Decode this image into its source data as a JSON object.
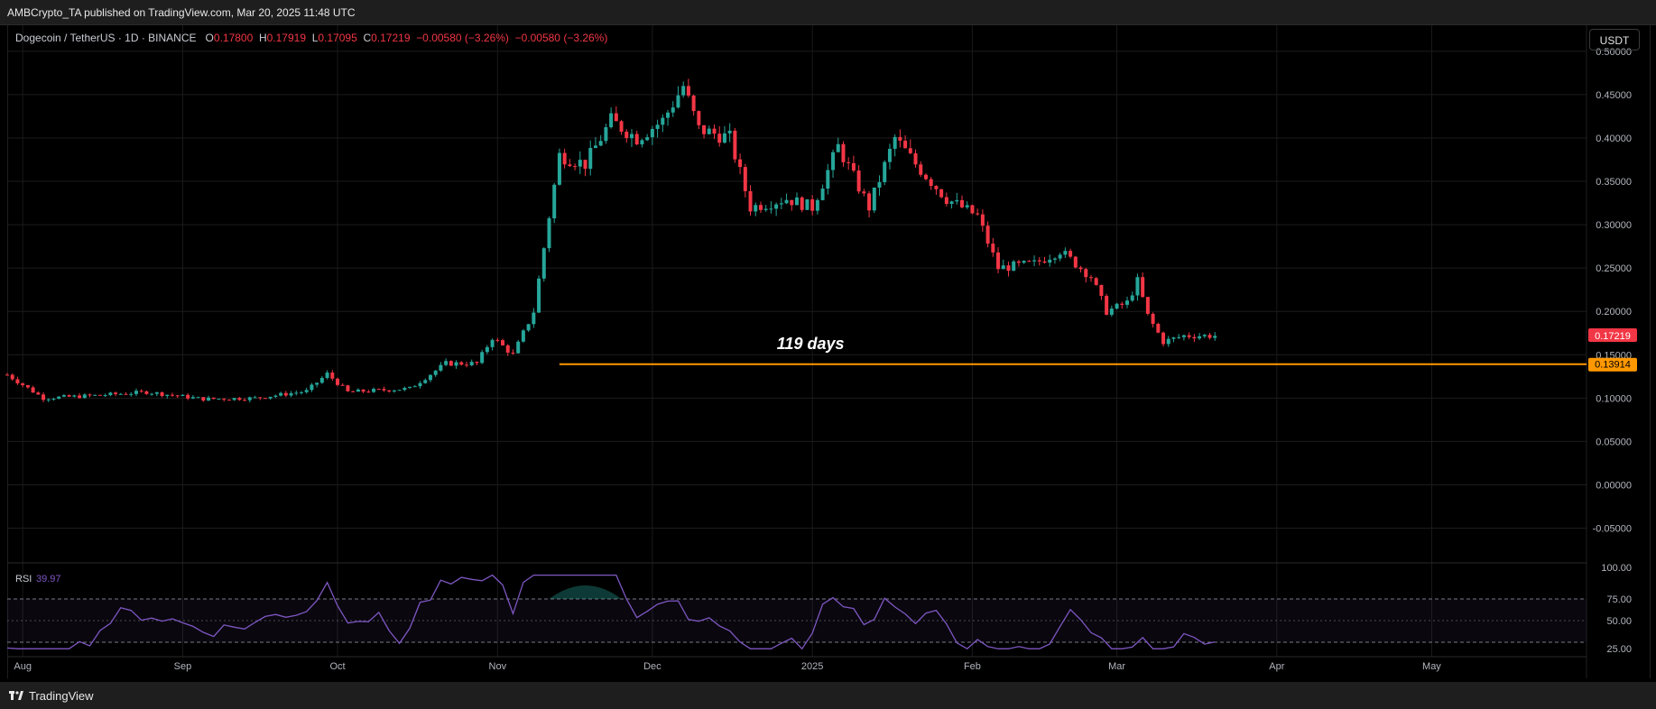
{
  "header": {
    "publisher": "AMBCrypto_TA published on TradingView.com, Mar 20, 2025 11:48 UTC"
  },
  "legend": {
    "symbol": "Dogecoin / TetherUS · 1D · BINANCE",
    "o_label": "O",
    "o": "0.17800",
    "h_label": "H",
    "h": "0.17919",
    "l_label": "L",
    "l": "0.17095",
    "c_label": "C",
    "c": "0.17219",
    "change": "−0.00580 (−3.26%)",
    "change2": "−0.00580 (−3.26%)"
  },
  "currency_button": "USDT",
  "annotation": "119 days",
  "price_tags": {
    "last": "0.17219",
    "support": "0.13914"
  },
  "colors": {
    "up": "#26a69a",
    "down": "#f23645",
    "support": "#ff9800",
    "rsi": "#7e57c2",
    "bg": "#000000"
  },
  "rsi": {
    "label": "RSI",
    "value": "39.97",
    "ticks": [
      "100.00",
      "75.00",
      "50.00",
      "25.00"
    ]
  },
  "footer": {
    "brand": "TradingView",
    "icon": "tradingview-logo-icon"
  },
  "chart_data": {
    "type": "candlestick",
    "title": "Dogecoin / TetherUS · 1D · BINANCE",
    "y_ticks": [
      "0.50000",
      "0.45000",
      "0.40000",
      "0.35000",
      "0.30000",
      "0.25000",
      "0.20000",
      "0.15000",
      "0.10000",
      "0.05000",
      "0.00000",
      "-0.05000"
    ],
    "ylim": [
      -0.09,
      0.53
    ],
    "x_ticks": [
      "Aug",
      "Sep",
      "Oct",
      "Nov",
      "Dec",
      "2025",
      "Feb",
      "Mar",
      "Apr",
      "May"
    ],
    "x_range": [
      "2024-07-29",
      "2025-05-31"
    ],
    "last_price": 0.17219,
    "support_level": 0.13914,
    "support_start": "2024-11-13",
    "annotation_date": "2025-01-01",
    "annotation_price": 0.163,
    "grid": true,
    "path": [
      [
        "2024-07-29",
        0.127
      ],
      [
        "2024-08-05",
        0.1
      ],
      [
        "2024-08-15",
        0.103
      ],
      [
        "2024-08-25",
        0.107
      ],
      [
        "2024-09-05",
        0.099
      ],
      [
        "2024-09-15",
        0.1
      ],
      [
        "2024-09-25",
        0.108
      ],
      [
        "2024-09-29",
        0.128
      ],
      [
        "2024-10-03",
        0.107
      ],
      [
        "2024-10-15",
        0.111
      ],
      [
        "2024-10-22",
        0.14
      ],
      [
        "2024-10-28",
        0.14
      ],
      [
        "2024-10-31",
        0.17
      ],
      [
        "2024-11-04",
        0.15
      ],
      [
        "2024-11-08",
        0.2
      ],
      [
        "2024-11-11",
        0.31
      ],
      [
        "2024-11-13",
        0.38
      ],
      [
        "2024-11-18",
        0.37
      ],
      [
        "2024-11-23",
        0.42
      ],
      [
        "2024-11-28",
        0.4
      ],
      [
        "2024-12-03",
        0.42
      ],
      [
        "2024-12-07",
        0.46
      ],
      [
        "2024-12-10",
        0.41
      ],
      [
        "2024-12-16",
        0.4
      ],
      [
        "2024-12-20",
        0.32
      ],
      [
        "2024-12-27",
        0.33
      ],
      [
        "2025-01-01",
        0.32
      ],
      [
        "2025-01-06",
        0.39
      ],
      [
        "2025-01-12",
        0.32
      ],
      [
        "2025-01-17",
        0.4
      ],
      [
        "2025-01-21",
        0.37
      ],
      [
        "2025-01-27",
        0.33
      ],
      [
        "2025-02-02",
        0.31
      ],
      [
        "2025-02-06",
        0.25
      ],
      [
        "2025-02-13",
        0.255
      ],
      [
        "2025-02-18",
        0.27
      ],
      [
        "2025-02-24",
        0.24
      ],
      [
        "2025-02-27",
        0.2
      ],
      [
        "2025-03-03",
        0.21
      ],
      [
        "2025-03-05",
        0.235
      ],
      [
        "2025-03-07",
        0.195
      ],
      [
        "2025-03-10",
        0.165
      ],
      [
        "2025-03-14",
        0.172
      ],
      [
        "2025-03-20",
        0.172
      ]
    ]
  }
}
